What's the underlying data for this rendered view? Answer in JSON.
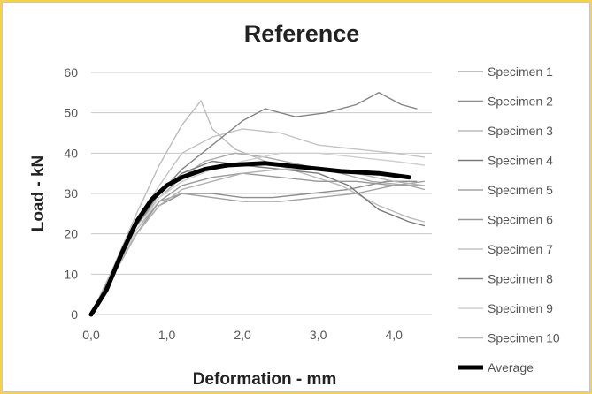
{
  "chart_data": {
    "type": "line",
    "title": "Reference",
    "xlabel": "Deformation - mm",
    "ylabel": "Load - kN",
    "xlim": [
      0,
      4.5
    ],
    "ylim": [
      0,
      60
    ],
    "x_ticks": [
      "0,0",
      "1,0",
      "2,0",
      "3,0",
      "4,0"
    ],
    "y_ticks": [
      "0",
      "10",
      "20",
      "30",
      "40",
      "50",
      "60"
    ],
    "grid": "horizontal",
    "legend_position": "right",
    "colors": {
      "specimens": [
        "#aaaaaa",
        "#8e8e8e",
        "#bcbcbc",
        "#7a7a7a",
        "#a2a2a2",
        "#999999",
        "#c4c4c4",
        "#858585",
        "#cfcfcf",
        "#b3b3b3"
      ],
      "average": "#000000",
      "gridline": "#c8c8c8"
    },
    "series": [
      {
        "name": "Specimen 1",
        "points": [
          [
            0,
            0
          ],
          [
            0.3,
            11
          ],
          [
            0.6,
            22
          ],
          [
            0.9,
            29
          ],
          [
            1.2,
            34
          ],
          [
            1.5,
            38
          ],
          [
            1.9,
            40
          ],
          [
            2.3,
            39
          ],
          [
            2.8,
            37
          ],
          [
            3.3,
            35
          ],
          [
            3.7,
            33
          ],
          [
            4.2,
            32
          ],
          [
            4.4,
            31
          ]
        ]
      },
      {
        "name": "Specimen 2",
        "points": [
          [
            0,
            0
          ],
          [
            0.3,
            10
          ],
          [
            0.6,
            20
          ],
          [
            0.9,
            27
          ],
          [
            1.2,
            30
          ],
          [
            1.6,
            30
          ],
          [
            2.0,
            29
          ],
          [
            2.4,
            29
          ],
          [
            2.9,
            30
          ],
          [
            3.4,
            31
          ],
          [
            3.9,
            33
          ],
          [
            4.3,
            33
          ]
        ]
      },
      {
        "name": "Specimen 3",
        "points": [
          [
            0,
            0
          ],
          [
            0.3,
            12
          ],
          [
            0.6,
            25
          ],
          [
            0.9,
            37
          ],
          [
            1.2,
            47
          ],
          [
            1.45,
            53
          ],
          [
            1.6,
            46
          ],
          [
            1.9,
            41
          ],
          [
            2.3,
            38
          ],
          [
            2.8,
            35
          ],
          [
            3.3,
            32
          ],
          [
            3.8,
            27
          ],
          [
            4.2,
            24
          ],
          [
            4.4,
            23
          ]
        ]
      },
      {
        "name": "Specimen 4",
        "points": [
          [
            0,
            0
          ],
          [
            0.3,
            11
          ],
          [
            0.6,
            22
          ],
          [
            0.9,
            30
          ],
          [
            1.2,
            35
          ],
          [
            1.6,
            38
          ],
          [
            2.0,
            37
          ],
          [
            2.5,
            36
          ],
          [
            3.0,
            35
          ],
          [
            3.4,
            32
          ],
          [
            3.8,
            26
          ],
          [
            4.2,
            23
          ],
          [
            4.4,
            22
          ]
        ]
      },
      {
        "name": "Specimen 5",
        "points": [
          [
            0,
            0
          ],
          [
            0.3,
            10
          ],
          [
            0.6,
            21
          ],
          [
            0.9,
            28
          ],
          [
            1.2,
            30
          ],
          [
            1.6,
            29
          ],
          [
            2.0,
            28
          ],
          [
            2.5,
            28
          ],
          [
            3.0,
            29
          ],
          [
            3.5,
            30
          ],
          [
            4.0,
            32
          ],
          [
            4.4,
            33
          ]
        ]
      },
      {
        "name": "Specimen 6",
        "points": [
          [
            0,
            0
          ],
          [
            0.3,
            10
          ],
          [
            0.6,
            20
          ],
          [
            0.9,
            28
          ],
          [
            1.2,
            32
          ],
          [
            1.6,
            34
          ],
          [
            2.0,
            35
          ],
          [
            2.5,
            34
          ],
          [
            3.0,
            33
          ],
          [
            3.5,
            33
          ],
          [
            4.0,
            32
          ],
          [
            4.4,
            32
          ]
        ]
      },
      {
        "name": "Specimen 7",
        "points": [
          [
            0,
            0
          ],
          [
            0.3,
            11
          ],
          [
            0.6,
            23
          ],
          [
            0.9,
            32
          ],
          [
            1.2,
            40
          ],
          [
            1.6,
            44
          ],
          [
            2.0,
            46
          ],
          [
            2.5,
            45
          ],
          [
            3.0,
            42
          ],
          [
            3.5,
            41
          ],
          [
            4.0,
            40
          ],
          [
            4.4,
            39
          ]
        ]
      },
      {
        "name": "Specimen 8",
        "points": [
          [
            0,
            0
          ],
          [
            0.3,
            11
          ],
          [
            0.6,
            22
          ],
          [
            0.9,
            30
          ],
          [
            1.2,
            36
          ],
          [
            1.6,
            42
          ],
          [
            2.0,
            48
          ],
          [
            2.3,
            51
          ],
          [
            2.7,
            49
          ],
          [
            3.1,
            50
          ],
          [
            3.5,
            52
          ],
          [
            3.8,
            55
          ],
          [
            4.1,
            52
          ],
          [
            4.3,
            51
          ]
        ]
      },
      {
        "name": "Specimen 9",
        "points": [
          [
            0,
            0
          ],
          [
            0.3,
            10
          ],
          [
            0.6,
            21
          ],
          [
            0.9,
            29
          ],
          [
            1.2,
            33
          ],
          [
            1.6,
            36
          ],
          [
            2.0,
            38
          ],
          [
            2.5,
            40
          ],
          [
            3.0,
            40
          ],
          [
            3.5,
            39
          ],
          [
            4.0,
            38
          ],
          [
            4.4,
            37
          ]
        ]
      },
      {
        "name": "Specimen 10",
        "points": [
          [
            0,
            0
          ],
          [
            0.3,
            10
          ],
          [
            0.6,
            20
          ],
          [
            0.9,
            27
          ],
          [
            1.2,
            31
          ],
          [
            1.6,
            33
          ],
          [
            2.0,
            35
          ],
          [
            2.5,
            36
          ],
          [
            3.0,
            36
          ],
          [
            3.5,
            35
          ],
          [
            4.0,
            33
          ],
          [
            4.4,
            32
          ]
        ]
      },
      {
        "name": "Average",
        "points": [
          [
            0,
            0
          ],
          [
            0.2,
            6
          ],
          [
            0.4,
            15
          ],
          [
            0.6,
            23
          ],
          [
            0.8,
            28.5
          ],
          [
            1.0,
            32
          ],
          [
            1.2,
            34
          ],
          [
            1.5,
            36
          ],
          [
            1.8,
            37
          ],
          [
            2.3,
            37.5
          ],
          [
            2.8,
            36.5
          ],
          [
            3.3,
            35.5
          ],
          [
            3.8,
            35
          ],
          [
            4.2,
            34
          ]
        ]
      }
    ]
  }
}
